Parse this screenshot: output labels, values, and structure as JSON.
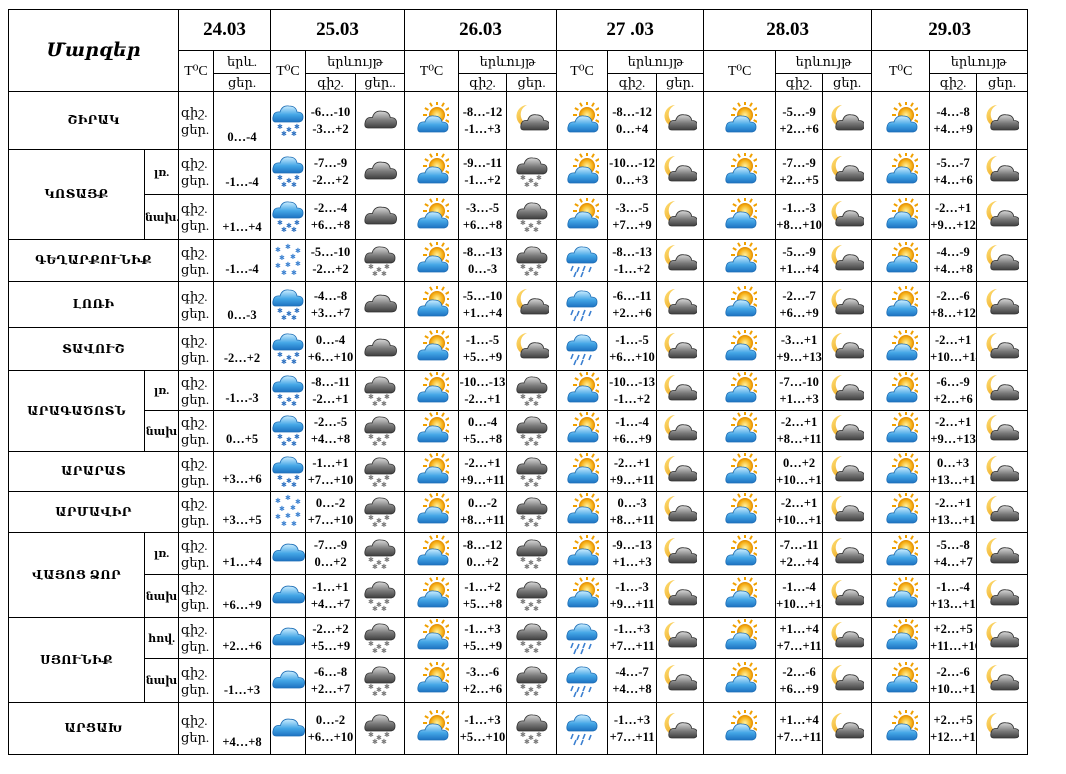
{
  "table_title": "Մարզեր",
  "dates": [
    "24.03",
    "25.03",
    "26.03",
    "27 .03",
    "28.03",
    "29.03"
  ],
  "headers": {
    "temp": "T⁰C",
    "phen_short": "երև.",
    "phen": "երևույթ",
    "night": "գիշ.",
    "day": "ցեր.",
    "night_trunc": "ցեր.."
  },
  "rows": [
    {
      "region": "ՇԻՐԱԿ",
      "sub": "",
      "temps": [
        "0…-4",
        "-6…-10\n-3…+2",
        "-8…-12\n-1…+3",
        "-8…-12\n0…+4",
        "-5…-9\n+2…+6",
        "-4…-8\n+4…+9"
      ],
      "icons": [
        [
          "rain-snow"
        ],
        [
          "cloud",
          "partly-sunny"
        ],
        [
          "moon-cloud",
          "partly-sunny"
        ],
        [
          "moon-cloud",
          "partly-sunny"
        ],
        [
          "moon-cloud",
          "partly-sunny"
        ],
        [
          "moon-cloud",
          "partly-sunny"
        ]
      ]
    },
    {
      "region": "ԿՈՏԱՅՔ",
      "sub": "լռ.",
      "temps": [
        "-1…-4",
        "-7…-9\n-2…+2",
        "-9…-11\n-1…+2",
        "-10…-12\n0…+3",
        "-7…-9\n+2…+5",
        "-5…-7\n+4…+6"
      ],
      "icons": [
        [
          "rain-snow"
        ],
        [
          "cloud",
          "partly-sunny"
        ],
        [
          "snow-cloud",
          "partly-sunny"
        ],
        [
          "moon-cloud",
          "partly-sunny"
        ],
        [
          "moon-cloud",
          "partly-sunny"
        ],
        [
          "moon-cloud",
          "partly-sunny"
        ]
      ]
    },
    {
      "region": "",
      "sub": "նախ.",
      "temps": [
        "+1…+4",
        "-2…-4\n+6…+8",
        "-3…-5\n+6…+8",
        "-3…-5\n+7…+9",
        "-1…-3\n+8…+10",
        "-2…+1\n+9…+12"
      ],
      "icons": [
        [
          "rain-snow"
        ],
        [
          "cloud",
          "partly-sunny"
        ],
        [
          "snow-cloud",
          "partly-sunny"
        ],
        [
          "moon-cloud",
          "partly-sunny"
        ],
        [
          "moon-cloud",
          "partly-sunny"
        ],
        [
          "moon-cloud",
          "partly-sunny"
        ]
      ]
    },
    {
      "region": "ԳԵՂԱՐՔՈՒՆԻՔ",
      "sub": "",
      "temps": [
        "-1…-4",
        "-5…-10\n-2…+2",
        "-8…-13\n0…-3",
        "-8…-13\n-1…+2",
        "-5…-9\n+1…+4",
        "-4…-9\n+4…+8"
      ],
      "icons": [
        [
          "snow"
        ],
        [
          "snow-cloud",
          "partly-sunny"
        ],
        [
          "snow-cloud",
          "rain-cloud"
        ],
        [
          "moon-cloud",
          "partly-sunny"
        ],
        [
          "moon-cloud",
          "partly-sunny"
        ],
        [
          "moon-cloud",
          "partly-sunny"
        ]
      ]
    },
    {
      "region": "ԼՈՌԻ",
      "sub": "",
      "temps": [
        "0…-3",
        "-4…-8\n+3…+7",
        "-5…-10\n+1…+4",
        "-6…-11\n+2…+6",
        "-2…-7\n+6…+9",
        "-2…-6\n+8…+12"
      ],
      "icons": [
        [
          "rain-snow"
        ],
        [
          "cloud",
          "partly-sunny"
        ],
        [
          "moon-cloud",
          "rain-cloud"
        ],
        [
          "moon-cloud",
          "partly-sunny"
        ],
        [
          "moon-cloud",
          "partly-sunny"
        ],
        [
          "moon-cloud",
          "partly-sunny"
        ]
      ]
    },
    {
      "region": "ՏԱՎՈՒՇ",
      "sub": "",
      "temps": [
        "-2…+2",
        "0…-4\n+6…+10",
        "-1…-5\n+5…+9",
        "-1…-5\n+6…+10",
        "-3…+1\n+9…+13",
        "-2…+1\n+10…+14"
      ],
      "icons": [
        [
          "rain-snow"
        ],
        [
          "cloud",
          "partly-sunny"
        ],
        [
          "moon-cloud",
          "rain-cloud"
        ],
        [
          "moon-cloud",
          "partly-sunny"
        ],
        [
          "moon-cloud",
          "partly-sunny"
        ],
        [
          "moon-cloud",
          "partly-sunny"
        ]
      ]
    },
    {
      "region": "ԱՐԱԳԱԾՈՏՆ",
      "sub": "լռ.",
      "temps": [
        "-1…-3",
        "-8…-11\n-2…+1",
        "-10…-13\n-2…+1",
        "-10…-13\n-1…+2",
        "-7…-10\n+1…+3",
        "-6…-9\n+2…+6"
      ],
      "icons": [
        [
          "rain-snow"
        ],
        [
          "snow-cloud",
          "partly-sunny"
        ],
        [
          "snow-cloud",
          "partly-sunny"
        ],
        [
          "moon-cloud",
          "partly-sunny"
        ],
        [
          "moon-cloud",
          "partly-sunny"
        ],
        [
          "moon-cloud",
          "partly-sunny"
        ]
      ]
    },
    {
      "region": "",
      "sub": "նախ",
      "temps": [
        "0…+5",
        "-2…-5\n+4…+8",
        "0…-4\n+5…+8",
        "-1…-4\n+6…+9",
        "-2…+1\n+8…+11",
        "-2…+1\n+9…+13"
      ],
      "icons": [
        [
          "rain-snow"
        ],
        [
          "snow-cloud",
          "partly-sunny"
        ],
        [
          "snow-cloud",
          "partly-sunny"
        ],
        [
          "moon-cloud",
          "partly-sunny"
        ],
        [
          "moon-cloud",
          "partly-sunny"
        ],
        [
          "moon-cloud",
          "partly-sunny"
        ]
      ]
    },
    {
      "region": "ԱՐԱՐԱՏ",
      "sub": "",
      "temps": [
        "+3…+6",
        "-1…+1\n+7…+10",
        "-2…+1\n+9…+11",
        "-2…+1\n+9…+11",
        "0…+2\n+10…+14",
        "0…+3\n+13…+16"
      ],
      "icons": [
        [
          "rain-snow"
        ],
        [
          "snow-cloud",
          "partly-sunny"
        ],
        [
          "snow-cloud",
          "partly-sunny"
        ],
        [
          "moon-cloud",
          "partly-sunny"
        ],
        [
          "moon-cloud",
          "partly-sunny"
        ],
        [
          "moon-cloud",
          "partly-sunny"
        ]
      ]
    },
    {
      "region": "ԱՐՄԱՎԻՐ",
      "sub": "",
      "temps": [
        "+3…+5",
        "0…-2\n+7…+10",
        "0…-2\n+8…+11",
        "0…-3\n+8…+11",
        "-2…+1\n+10…+14",
        "-2…+1\n+13…+16"
      ],
      "icons": [
        [
          "snow"
        ],
        [
          "snow-cloud",
          "partly-sunny"
        ],
        [
          "snow-cloud",
          "partly-sunny"
        ],
        [
          "moon-cloud",
          "partly-sunny"
        ],
        [
          "moon-cloud",
          "partly-sunny"
        ],
        [
          "moon-cloud",
          "partly-sunny"
        ]
      ]
    },
    {
      "region": "ՎԱՅՈՑ ՁՈՐ",
      "sub": "լռ.",
      "temps": [
        "+1…+4",
        "-7…-9\n0…+2",
        "-8…-12\n0…+2",
        "-9…-13\n+1…+3",
        "-7…-11\n+2…+4",
        "-5…-8\n+4…+7"
      ],
      "icons": [
        [
          "cloud-blue"
        ],
        [
          "snow-cloud",
          "partly-sunny"
        ],
        [
          "snow-cloud",
          "partly-sunny"
        ],
        [
          "moon-cloud",
          "partly-sunny"
        ],
        [
          "moon-cloud",
          "partly-sunny"
        ],
        [
          "moon-cloud",
          "partly-sunny"
        ]
      ]
    },
    {
      "region": "",
      "sub": "նախ",
      "temps": [
        "+6…+9",
        "-1…+1\n+4…+7",
        "-1…+2\n+5…+8",
        "-1…-3\n+9…+11",
        "-1…-4\n+10…+14",
        "-1…-4\n+13…+16"
      ],
      "icons": [
        [
          "cloud-blue"
        ],
        [
          "snow-cloud",
          "partly-sunny"
        ],
        [
          "snow-cloud",
          "partly-sunny"
        ],
        [
          "moon-cloud",
          "partly-sunny"
        ],
        [
          "moon-cloud",
          "partly-sunny"
        ],
        [
          "moon-cloud",
          "partly-sunny"
        ]
      ]
    },
    {
      "region": "ՍՅՈՒՆԻՔ",
      "sub": "հով.",
      "temps": [
        "+2…+6",
        "-2…+2\n+5…+9",
        "-1…+3\n+5…+9",
        "-1…+3\n+7…+11",
        "+1…+4\n+7…+11",
        "+2…+5\n+11…+16"
      ],
      "icons": [
        [
          "cloud-blue"
        ],
        [
          "snow-cloud",
          "partly-sunny"
        ],
        [
          "snow-cloud",
          "rain-cloud"
        ],
        [
          "moon-cloud",
          "partly-sunny"
        ],
        [
          "moon-cloud",
          "partly-sunny"
        ],
        [
          "moon-cloud",
          "partly-sunny"
        ]
      ]
    },
    {
      "region": "",
      "sub": "նախ",
      "temps": [
        "-1…+3",
        "-6…-8\n+2…+7",
        "-3…-6\n+2…+6",
        "-4…-7\n+4…+8",
        "-2…-6\n+6…+9",
        "-2…-6\n+10…+13"
      ],
      "icons": [
        [
          "cloud-blue"
        ],
        [
          "snow-cloud",
          "partly-sunny"
        ],
        [
          "snow-cloud",
          "rain-cloud"
        ],
        [
          "moon-cloud",
          "partly-sunny"
        ],
        [
          "moon-cloud",
          "partly-sunny"
        ],
        [
          "moon-cloud",
          "partly-sunny"
        ]
      ]
    },
    {
      "region": "ԱՐՑԱԽ",
      "sub": "",
      "temps": [
        "+4…+8",
        "0…-2\n+6…+10",
        "-1…+3\n+5…+10",
        "-1…+3\n+7…+11",
        "+1…+4\n+7…+11",
        "+2…+5\n+12…+17"
      ],
      "icons": [
        [
          "cloud-blue"
        ],
        [
          "snow-cloud",
          "partly-sunny"
        ],
        [
          "snow-cloud",
          "rain-cloud"
        ],
        [
          "moon-cloud",
          "partly-sunny"
        ],
        [
          "moon-cloud",
          "partly-sunny"
        ],
        [
          "moon-cloud",
          "partly-sunny"
        ]
      ]
    }
  ]
}
